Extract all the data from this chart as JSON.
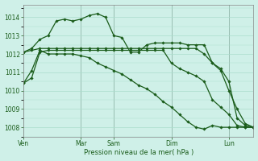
{
  "background_color": "#cff0e8",
  "grid_color": "#aaddcc",
  "line_color": "#1a5c1a",
  "vline_color": "#666666",
  "xlabel": "Pression niveau de la mer( hPa )",
  "ylim": [
    1007.5,
    1014.7
  ],
  "yticks": [
    1008,
    1009,
    1010,
    1011,
    1012,
    1013,
    1014
  ],
  "day_labels": [
    "Ven",
    "Mar",
    "Sam",
    "Dim",
    "Lun"
  ],
  "day_positions": [
    0,
    7,
    11,
    18,
    25
  ],
  "n_points": 29,
  "series": [
    [
      1010.4,
      1010.7,
      1012.1,
      1012.2,
      1012.2,
      1012.2,
      1012.2,
      1012.2,
      1012.2,
      1012.2,
      1012.2,
      1012.2,
      1012.2,
      1012.2,
      1012.2,
      1012.2,
      1012.2,
      1012.2,
      1011.5,
      1011.2,
      1011.0,
      1010.8,
      1010.5,
      1009.5,
      1009.1,
      1008.7,
      1008.1,
      1008.0,
      1008.0
    ],
    [
      1012.1,
      1012.2,
      1012.3,
      1012.3,
      1012.3,
      1012.3,
      1012.3,
      1012.3,
      1012.3,
      1012.3,
      1012.3,
      1012.3,
      1012.3,
      1012.3,
      1012.3,
      1012.3,
      1012.3,
      1012.3,
      1012.3,
      1012.3,
      1012.3,
      1012.3,
      1012.0,
      1011.5,
      1011.2,
      1010.5,
      1008.5,
      1008.1,
      1008.0
    ],
    [
      1012.1,
      1012.3,
      1012.8,
      1013.0,
      1013.8,
      1013.9,
      1013.8,
      1013.9,
      1014.1,
      1014.2,
      1014.0,
      1013.0,
      1012.9,
      1012.1,
      1012.1,
      1012.5,
      1012.6,
      1012.6,
      1012.6,
      1012.6,
      1012.5,
      1012.5,
      1012.5,
      1011.5,
      1011.1,
      1010.0,
      1009.0,
      1008.2,
      1008.0
    ],
    [
      1010.4,
      1011.1,
      1012.2,
      1012.0,
      1012.0,
      1012.0,
      1012.0,
      1011.9,
      1011.8,
      1011.5,
      1011.3,
      1011.1,
      1010.9,
      1010.6,
      1010.3,
      1010.1,
      1009.8,
      1009.4,
      1009.1,
      1008.7,
      1008.3,
      1008.0,
      1007.9,
      1008.1,
      1008.0,
      1008.0,
      1008.0,
      1008.0,
      1008.0
    ]
  ]
}
